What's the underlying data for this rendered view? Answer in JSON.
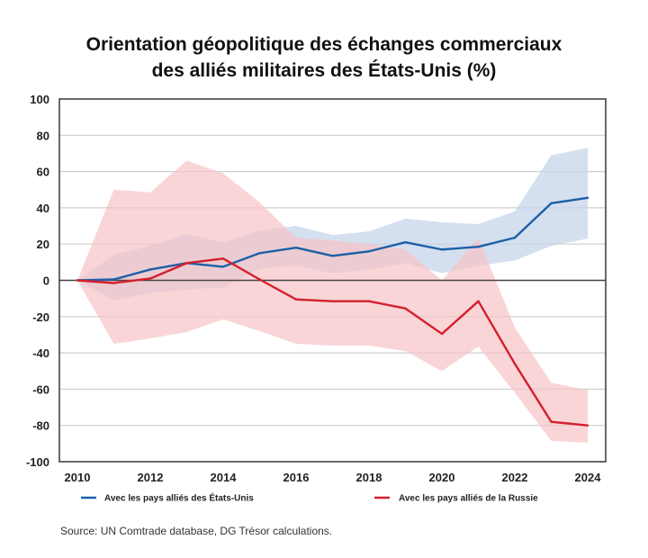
{
  "chart_data": {
    "type": "line",
    "title": "Orientation géopolitique des échanges commerciaux des alliés militaires des États-Unis (%)",
    "title_lines": [
      "Orientation géopolitique des échanges commerciaux",
      "des alliés militaires des États-Unis (%)"
    ],
    "xlabel": "",
    "ylabel": "",
    "x": [
      2010,
      2011,
      2012,
      2013,
      2014,
      2015,
      2016,
      2017,
      2018,
      2019,
      2020,
      2021,
      2022,
      2023,
      2024
    ],
    "xticks": [
      2010,
      2012,
      2014,
      2016,
      2018,
      2020,
      2022,
      2024
    ],
    "xtick_labels": [
      "2010",
      "2012",
      "2014",
      "2016",
      "2018",
      "2020",
      "2022",
      "2024"
    ],
    "xlim": [
      2010,
      2024
    ],
    "ylim": [
      -100,
      100
    ],
    "yticks": [
      100,
      80,
      60,
      40,
      20,
      0,
      -20,
      -40,
      -60,
      -80,
      -100
    ],
    "ytick_labels": [
      "100",
      "80",
      "60",
      "40",
      "20",
      "0",
      "-20",
      "-40",
      "-60",
      "-80",
      "-100"
    ],
    "grid": true,
    "legend_position": "bottom",
    "series": [
      {
        "name": "Avec les pays alliés des États-Unis",
        "color": "#1d5fa6",
        "band_color": "#c6d6ea",
        "values": [
          0,
          0.5,
          6,
          9.5,
          7.5,
          15,
          18,
          13.5,
          16,
          21,
          17,
          18.5,
          23.5,
          42.5,
          45.5
        ],
        "band_upper": [
          0,
          14,
          19,
          25.5,
          21,
          27.5,
          30,
          25,
          27,
          34,
          32,
          31,
          38,
          69,
          73
        ],
        "band_lower": [
          0,
          -11,
          -7,
          -5,
          -4,
          6.5,
          8,
          4,
          6,
          9.5,
          4,
          8,
          11,
          19,
          23
        ]
      },
      {
        "name": "Avec les pays alliés de la Russie",
        "color": "#d4202c",
        "band_color": "#f6c3c6",
        "values": [
          0,
          -1.5,
          1,
          9.5,
          12,
          0.5,
          -10.5,
          -11.5,
          -11.5,
          -15.5,
          -29.5,
          -11.5,
          -46,
          -78,
          -80
        ],
        "band_upper": [
          0,
          50,
          48.5,
          66,
          59,
          43,
          23.5,
          22,
          20,
          17,
          0,
          23.5,
          -26,
          -56.5,
          -60.5
        ],
        "band_lower": [
          0,
          -35,
          -32,
          -28.5,
          -21.5,
          -28,
          -35,
          -36,
          -36,
          -39,
          -50,
          -36.5,
          -62,
          -88.5,
          -89.5
        ]
      }
    ]
  },
  "source": "Source: UN Comtrade database, DG Trésor calculations."
}
